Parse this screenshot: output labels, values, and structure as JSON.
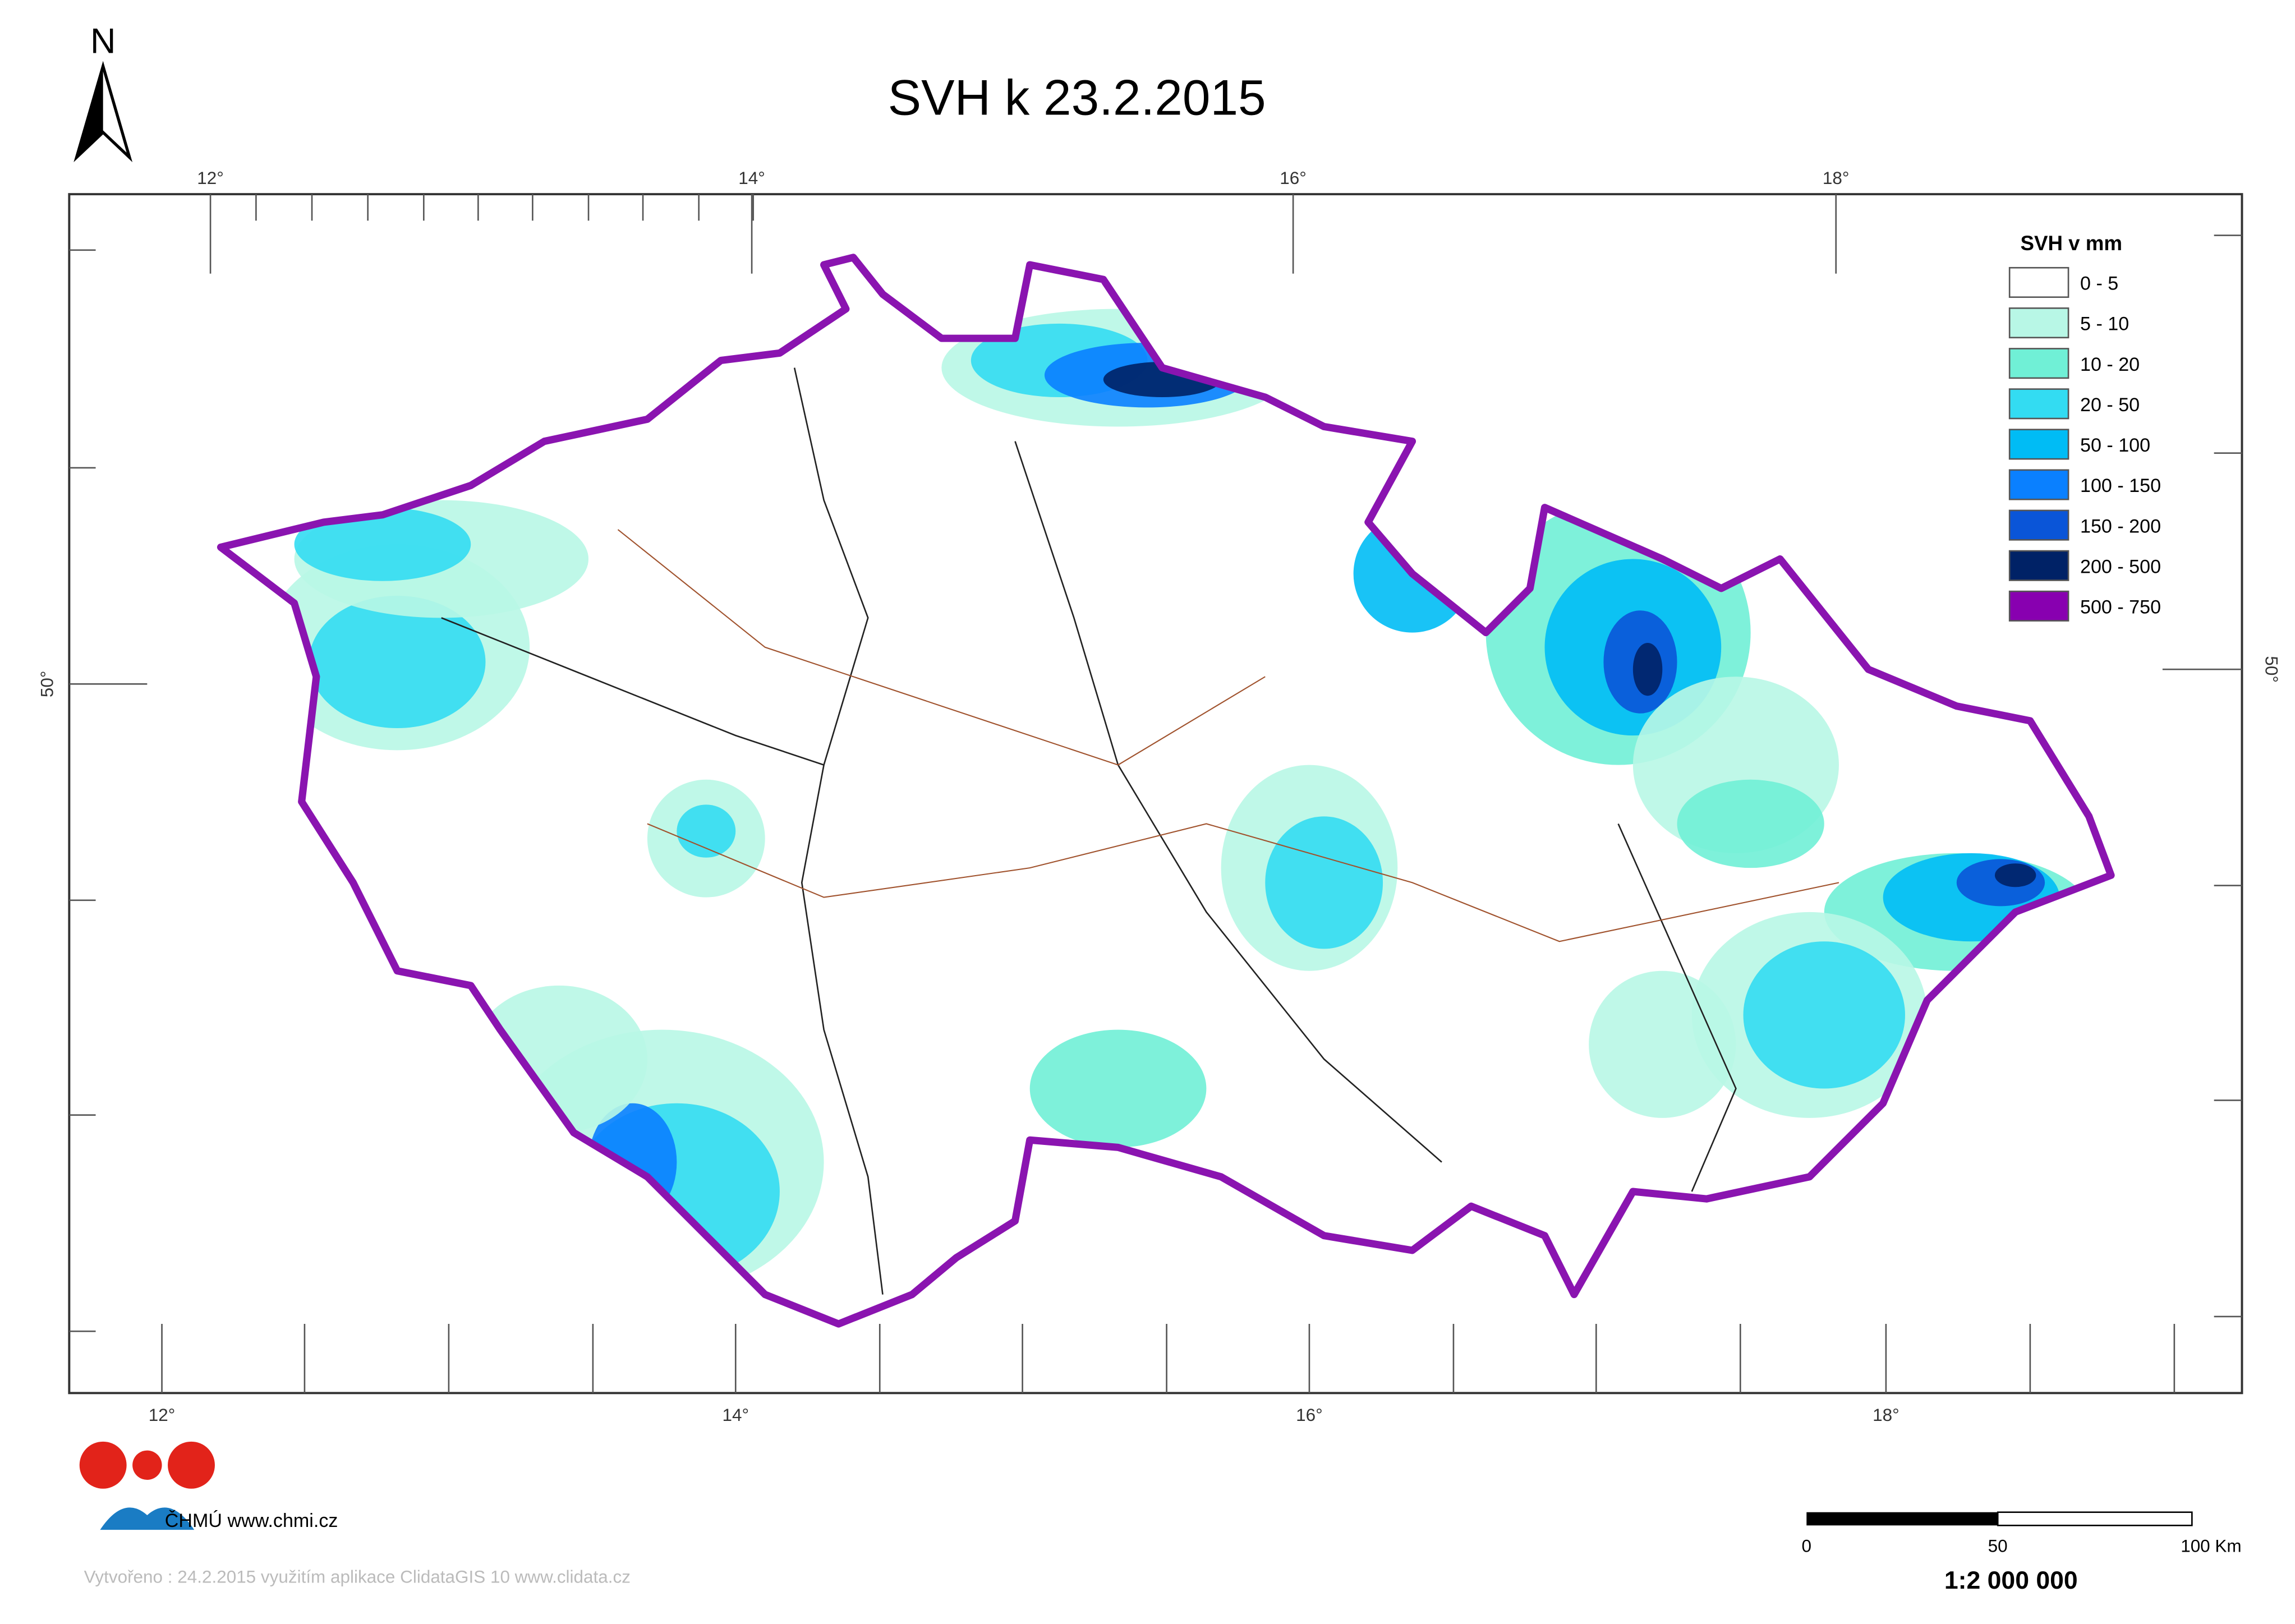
{
  "header": {
    "title": "SVH k 23.2.2015",
    "north": "N"
  },
  "graticule": {
    "top": [
      "12°",
      "14°",
      "16°",
      "18°"
    ],
    "bottom": [
      "12°",
      "14°",
      "16°",
      "18°"
    ],
    "left": "50°",
    "right": "50°"
  },
  "legend": {
    "title": "SVH v mm",
    "items": [
      {
        "label": "0 - 5",
        "color": "#ffffff"
      },
      {
        "label": "5 - 10",
        "color": "#b8f7e6"
      },
      {
        "label": "10 - 20",
        "color": "#70f0d6"
      },
      {
        "label": "20 - 50",
        "color": "#33dcf2"
      },
      {
        "label": "50 - 100",
        "color": "#00bcf5"
      },
      {
        "label": "100 - 150",
        "color": "#0a80ff"
      },
      {
        "label": "150 - 200",
        "color": "#0a55d8"
      },
      {
        "label": "200 - 500",
        "color": "#002266"
      },
      {
        "label": "500 - 750",
        "color": "#8800b0"
      }
    ]
  },
  "logo": {
    "text": "ČHMÚ www.chmi.cz"
  },
  "scalebar": {
    "labels": [
      "0",
      "50",
      "100 Km"
    ],
    "ratio": "1:2 000 000"
  },
  "footer": {
    "credit": "Vytvořeno : 24.2.2015 využitím aplikace ClidataGIS 10 www.clidata.cz"
  }
}
